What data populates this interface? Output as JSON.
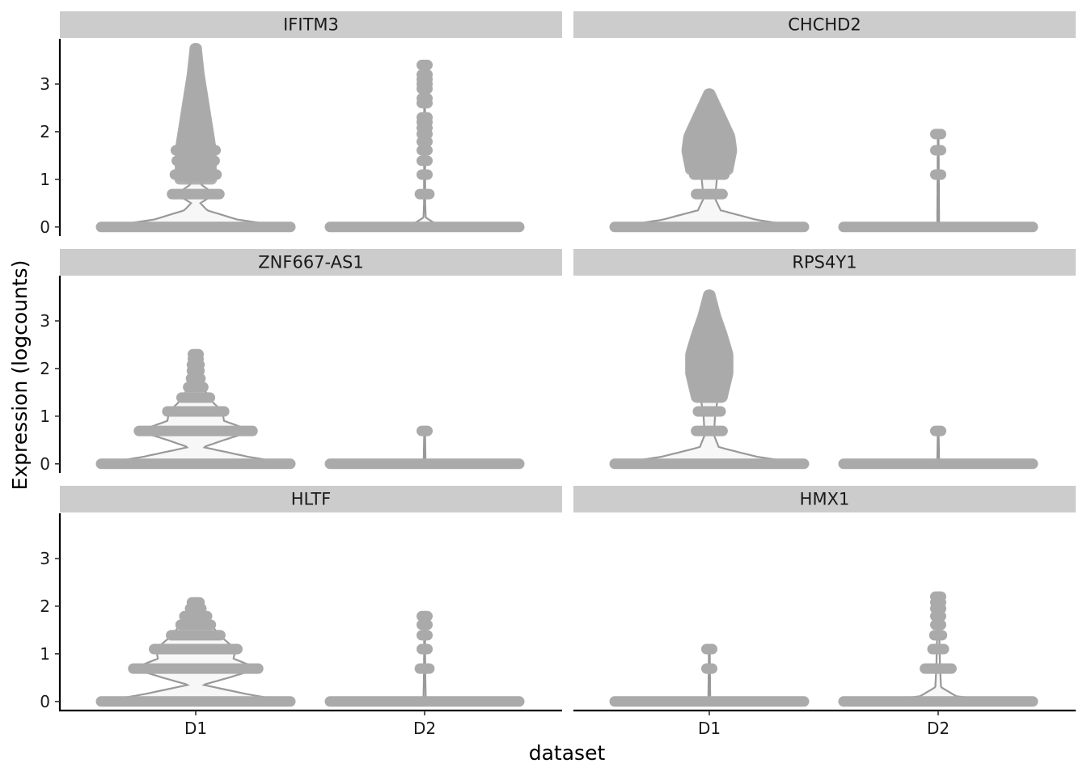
{
  "chart_data": {
    "type": "violin",
    "xlabel": "dataset",
    "ylabel": "Expression (logcounts)",
    "categories": [
      "D1",
      "D2"
    ],
    "yticks": [
      0,
      1,
      2,
      3
    ],
    "ylim": [
      -0.19,
      3.95
    ],
    "grid": false,
    "legend": "none",
    "facet_layout": "3 rows x 2 columns, shared axes",
    "colors": {
      "violin_outline": "#999999",
      "violin_fill": "#f7f7f7",
      "points": "#aaaaaa",
      "strip_bg": "#cccccc"
    },
    "panels": [
      {
        "gene": "IFITM3",
        "groups": [
          {
            "dataset": "D1",
            "discrete_levels": [
              [
                0,
                1.0
              ],
              [
                0.69,
                0.25
              ],
              [
                1.1,
                0.22
              ],
              [
                1.39,
                0.2
              ],
              [
                1.61,
                0.21
              ]
            ],
            "continuous": {
              "from": 1.0,
              "to": 3.75,
              "width": [
                [
                  1.0,
                  0.17
                ],
                [
                  1.7,
                  0.16
                ],
                [
                  2.2,
                  0.12
                ],
                [
                  2.7,
                  0.08
                ],
                [
                  3.2,
                  0.04
                ],
                [
                  3.75,
                  0.01
                ]
              ]
            },
            "density": [
              [
                0,
                1.0
              ],
              [
                0.15,
                0.45
              ],
              [
                0.35,
                0.12
              ],
              [
                0.5,
                0.05
              ],
              [
                0.69,
                0.2
              ],
              [
                0.9,
                0.05
              ],
              [
                1.1,
                0.17
              ],
              [
                1.5,
                0.15
              ],
              [
                2.0,
                0.12
              ],
              [
                2.5,
                0.08
              ],
              [
                3.0,
                0.05
              ],
              [
                3.5,
                0.02
              ],
              [
                3.75,
                0.005
              ]
            ],
            "max": 3.75
          },
          {
            "dataset": "D2",
            "discrete_levels": [
              [
                0,
                1.0
              ],
              [
                0.69,
                0.05
              ],
              [
                1.1,
                0.03
              ],
              [
                1.39,
                0.03
              ],
              [
                1.61,
                0.03
              ],
              [
                1.79,
                0.03
              ],
              [
                1.95,
                0.03
              ],
              [
                2.08,
                0.03
              ],
              [
                2.2,
                0.03
              ],
              [
                2.3,
                0.03
              ],
              [
                2.6,
                0.03
              ],
              [
                2.7,
                0.03
              ],
              [
                2.9,
                0.03
              ],
              [
                3.0,
                0.03
              ],
              [
                3.1,
                0.03
              ],
              [
                3.2,
                0.03
              ],
              [
                3.4,
                0.03
              ]
            ],
            "density": [
              [
                0,
                1.0
              ],
              [
                0.06,
                0.12
              ],
              [
                0.2,
                0.012
              ],
              [
                0.5,
                0.006
              ],
              [
                3.4,
                0.004
              ]
            ],
            "max": 3.4
          }
        ]
      },
      {
        "gene": "CHCHD2",
        "groups": [
          {
            "dataset": "D1",
            "discrete_levels": [
              [
                0,
                1.0
              ],
              [
                0.69,
                0.14
              ],
              [
                1.1,
                0.16
              ]
            ],
            "continuous": {
              "from": 1.2,
              "to": 2.8,
              "width": [
                [
                  1.2,
                  0.2
                ],
                [
                  1.6,
                  0.24
                ],
                [
                  1.9,
                  0.22
                ],
                [
                  2.2,
                  0.15
                ],
                [
                  2.5,
                  0.08
                ],
                [
                  2.8,
                  0.01
                ]
              ]
            },
            "density": [
              [
                0,
                1.0
              ],
              [
                0.15,
                0.5
              ],
              [
                0.35,
                0.12
              ],
              [
                0.6,
                0.06
              ],
              [
                1.0,
                0.08
              ],
              [
                1.5,
                0.15
              ],
              [
                2.0,
                0.12
              ],
              [
                2.4,
                0.07
              ],
              [
                2.8,
                0.005
              ]
            ],
            "max": 2.8
          },
          {
            "dataset": "D2",
            "discrete_levels": [
              [
                0,
                1.0
              ],
              [
                1.1,
                0.03
              ],
              [
                1.61,
                0.03
              ],
              [
                1.95,
                0.03
              ]
            ],
            "density": [
              [
                0,
                1.0
              ],
              [
                0.04,
                0.01
              ],
              [
                1.95,
                0.004
              ]
            ],
            "max": 1.95
          }
        ]
      },
      {
        "gene": "ZNF667-AS1",
        "groups": [
          {
            "dataset": "D1",
            "discrete_levels": [
              [
                0,
                1.0
              ],
              [
                0.69,
                0.6
              ],
              [
                1.1,
                0.3
              ],
              [
                1.39,
                0.15
              ],
              [
                1.61,
                0.08
              ],
              [
                1.79,
                0.05
              ],
              [
                1.95,
                0.04
              ],
              [
                2.08,
                0.04
              ],
              [
                2.2,
                0.03
              ],
              [
                2.3,
                0.03
              ]
            ],
            "density": [
              [
                0,
                1.0
              ],
              [
                0.15,
                0.55
              ],
              [
                0.35,
                0.08
              ],
              [
                0.5,
                0.3
              ],
              [
                0.69,
                0.6
              ],
              [
                0.9,
                0.3
              ],
              [
                1.1,
                0.28
              ],
              [
                1.39,
                0.13
              ],
              [
                1.8,
                0.05
              ],
              [
                2.3,
                0.01
              ]
            ],
            "max": 2.3
          },
          {
            "dataset": "D2",
            "discrete_levels": [
              [
                0,
                1.0
              ],
              [
                0.69,
                0.03
              ]
            ],
            "density": [
              [
                0,
                1.0
              ],
              [
                0.04,
                0.01
              ],
              [
                0.69,
                0.004
              ]
            ],
            "max": 0.69
          }
        ]
      },
      {
        "gene": "RPS4Y1",
        "groups": [
          {
            "dataset": "D1",
            "discrete_levels": [
              [
                0,
                1.0
              ],
              [
                0.69,
                0.14
              ],
              [
                1.1,
                0.12
              ],
              [
                1.39,
                0.13
              ]
            ],
            "continuous": {
              "from": 1.4,
              "to": 3.55,
              "width": [
                [
                  1.4,
                  0.14
                ],
                [
                  1.9,
                  0.2
                ],
                [
                  2.3,
                  0.2
                ],
                [
                  2.7,
                  0.14
                ],
                [
                  3.1,
                  0.07
                ],
                [
                  3.55,
                  0.01
                ]
              ]
            },
            "density": [
              [
                0,
                1.0
              ],
              [
                0.15,
                0.5
              ],
              [
                0.35,
                0.1
              ],
              [
                0.6,
                0.05
              ],
              [
                1.0,
                0.06
              ],
              [
                1.5,
                0.1
              ],
              [
                2.0,
                0.14
              ],
              [
                2.5,
                0.1
              ],
              [
                3.0,
                0.05
              ],
              [
                3.55,
                0.005
              ]
            ],
            "max": 3.55
          },
          {
            "dataset": "D2",
            "discrete_levels": [
              [
                0,
                1.0
              ],
              [
                0.69,
                0.03
              ]
            ],
            "density": [
              [
                0,
                1.0
              ],
              [
                0.04,
                0.01
              ],
              [
                0.69,
                0.004
              ]
            ],
            "max": 0.69
          }
        ]
      },
      {
        "gene": "HLTF",
        "groups": [
          {
            "dataset": "D1",
            "discrete_levels": [
              [
                0,
                1.0
              ],
              [
                0.69,
                0.66
              ],
              [
                1.1,
                0.44
              ],
              [
                1.39,
                0.26
              ],
              [
                1.61,
                0.16
              ],
              [
                1.79,
                0.12
              ],
              [
                1.95,
                0.06
              ],
              [
                2.08,
                0.04
              ]
            ],
            "density": [
              [
                0,
                1.0
              ],
              [
                0.15,
                0.55
              ],
              [
                0.35,
                0.08
              ],
              [
                0.5,
                0.35
              ],
              [
                0.69,
                0.66
              ],
              [
                0.9,
                0.4
              ],
              [
                1.1,
                0.42
              ],
              [
                1.39,
                0.25
              ],
              [
                1.7,
                0.13
              ],
              [
                2.08,
                0.01
              ]
            ],
            "max": 2.08
          },
          {
            "dataset": "D2",
            "discrete_levels": [
              [
                0,
                1.0
              ],
              [
                0.69,
                0.05
              ],
              [
                1.1,
                0.03
              ],
              [
                1.39,
                0.03
              ],
              [
                1.61,
                0.03
              ],
              [
                1.79,
                0.03
              ]
            ],
            "density": [
              [
                0,
                1.0
              ],
              [
                0.04,
                0.012
              ],
              [
                0.69,
                0.006
              ],
              [
                1.79,
                0.004
              ]
            ],
            "max": 1.79
          }
        ]
      },
      {
        "gene": "HMX1",
        "groups": [
          {
            "dataset": "D1",
            "discrete_levels": [
              [
                0,
                1.0
              ],
              [
                0.69,
                0.03
              ],
              [
                1.1,
                0.03
              ]
            ],
            "density": [
              [
                0,
                1.0
              ],
              [
                0.04,
                0.01
              ],
              [
                1.1,
                0.004
              ]
            ],
            "max": 1.1
          },
          {
            "dataset": "D2",
            "discrete_levels": [
              [
                0,
                1.0
              ],
              [
                0.69,
                0.14
              ],
              [
                1.1,
                0.06
              ],
              [
                1.39,
                0.04
              ],
              [
                1.61,
                0.03
              ],
              [
                1.79,
                0.03
              ],
              [
                1.95,
                0.03
              ],
              [
                2.08,
                0.03
              ],
              [
                2.2,
                0.03
              ]
            ],
            "density": [
              [
                0,
                1.0
              ],
              [
                0.1,
                0.2
              ],
              [
                0.3,
                0.03
              ],
              [
                0.69,
                0.02
              ],
              [
                1.5,
                0.01
              ],
              [
                2.2,
                0.004
              ]
            ],
            "max": 2.2
          }
        ]
      }
    ]
  }
}
